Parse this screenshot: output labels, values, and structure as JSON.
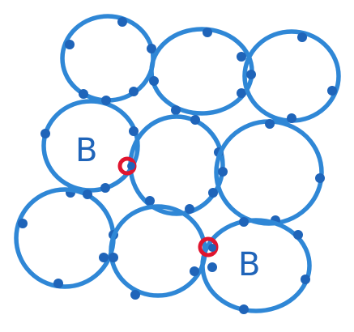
{
  "colors": {
    "circle_stroke": "#2f87d6",
    "dot": "#1f64b9",
    "label": "#1f64b9",
    "highlight": "#e0152f",
    "background": "#ffffff"
  },
  "labels": {
    "top_left_circle": "B",
    "bottom_right_circle": "B"
  }
}
